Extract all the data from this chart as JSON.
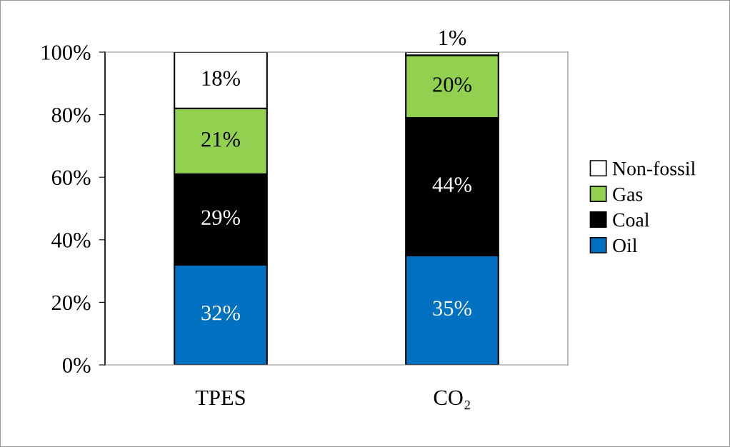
{
  "chart_data": {
    "type": "bar",
    "stacked": true,
    "categories": [
      "TPES",
      "CO₂"
    ],
    "series": [
      {
        "name": "Oil",
        "color": "#0070c0",
        "values": [
          32,
          35
        ],
        "value_labels": [
          "32%",
          "35%"
        ]
      },
      {
        "name": "Coal",
        "color": "#000000",
        "values": [
          29,
          44
        ],
        "value_labels": [
          "29%",
          "44%"
        ]
      },
      {
        "name": "Gas",
        "color": "#92d050",
        "values": [
          21,
          20
        ],
        "value_labels": [
          "21%",
          "20%"
        ]
      },
      {
        "name": "Non-fossil",
        "color": "#ffffff",
        "values": [
          18,
          1
        ],
        "value_labels": [
          "18%",
          "1%"
        ]
      }
    ],
    "ylim": [
      0,
      100
    ],
    "yticks": [
      {
        "value": 0,
        "label": "0%"
      },
      {
        "value": 20,
        "label": "20%"
      },
      {
        "value": 40,
        "label": "40%"
      },
      {
        "value": 60,
        "label": "60%"
      },
      {
        "value": 80,
        "label": "80%"
      },
      {
        "value": 100,
        "label": "100%"
      }
    ],
    "grid": false,
    "legend": "right"
  }
}
